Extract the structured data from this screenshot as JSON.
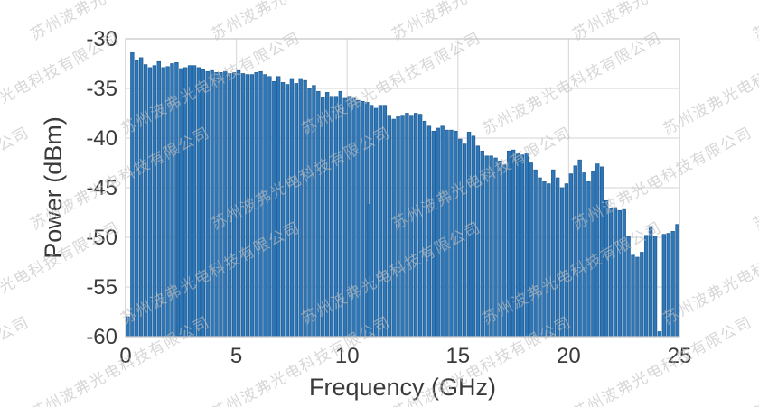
{
  "figure": {
    "background": "#ffffff",
    "watermark": {
      "text": "苏州波弗光电科技有限公司",
      "color": "#d9d9d9",
      "angle_deg": -28
    }
  },
  "chart_data": {
    "type": "bar",
    "title": "",
    "xlabel": "Frequency (GHz)",
    "ylabel": "Power (dBm)",
    "xlim": [
      0,
      25
    ],
    "ylim": [
      -60,
      -30
    ],
    "xticks": [
      0,
      5,
      10,
      15,
      20,
      25
    ],
    "yticks": [
      -30,
      -35,
      -40,
      -45,
      -50,
      -55,
      -60
    ],
    "grid": true,
    "grid_color": "#dcdcdc",
    "spine_color": "#c8c8c8",
    "bar_color": "#2e76b6",
    "bar_edge_color": "#1f5c94",
    "bar_width_ghz": 0.15,
    "comb_spacing_ghz": 0.2,
    "x_unit": "GHz",
    "y_unit": "dBm",
    "points": [
      [
        0.1,
        -58.0
      ],
      [
        0.3,
        -31.4
      ],
      [
        0.5,
        -32.2
      ],
      [
        0.7,
        -31.9
      ],
      [
        0.9,
        -32.6
      ],
      [
        1.1,
        -32.9
      ],
      [
        1.3,
        -32.7
      ],
      [
        1.5,
        -32.3
      ],
      [
        1.7,
        -32.9
      ],
      [
        1.9,
        -32.8
      ],
      [
        2.1,
        -32.5
      ],
      [
        2.3,
        -32.4
      ],
      [
        2.4,
        -41.5
      ],
      [
        2.5,
        -33.0
      ],
      [
        2.7,
        -32.9
      ],
      [
        2.9,
        -32.7
      ],
      [
        3.1,
        -32.7
      ],
      [
        3.3,
        -32.9
      ],
      [
        3.5,
        -33.1
      ],
      [
        3.7,
        -33.3
      ],
      [
        3.9,
        -33.2
      ],
      [
        4.1,
        -33.4
      ],
      [
        4.3,
        -33.4
      ],
      [
        4.5,
        -33.3
      ],
      [
        4.7,
        -33.5
      ],
      [
        4.9,
        -33.4
      ],
      [
        5.1,
        -33.2
      ],
      [
        5.3,
        -33.5
      ],
      [
        5.5,
        -33.6
      ],
      [
        5.7,
        -33.6
      ],
      [
        5.9,
        -33.4
      ],
      [
        6.1,
        -33.3
      ],
      [
        6.3,
        -33.6
      ],
      [
        6.5,
        -33.8
      ],
      [
        6.7,
        -34.3
      ],
      [
        6.9,
        -33.8
      ],
      [
        7.1,
        -34.4
      ],
      [
        7.3,
        -34.6
      ],
      [
        7.5,
        -34.0
      ],
      [
        7.7,
        -34.5
      ],
      [
        7.9,
        -34.0
      ],
      [
        8.1,
        -34.2
      ],
      [
        8.3,
        -35.0
      ],
      [
        8.5,
        -34.7
      ],
      [
        8.7,
        -35.3
      ],
      [
        8.9,
        -35.9
      ],
      [
        9.1,
        -35.4
      ],
      [
        9.3,
        -35.8
      ],
      [
        9.5,
        -35.8
      ],
      [
        9.7,
        -35.3
      ],
      [
        9.9,
        -36.0
      ],
      [
        10.1,
        -35.8
      ],
      [
        10.3,
        -36.0
      ],
      [
        10.5,
        -36.2
      ],
      [
        10.7,
        -36.3
      ],
      [
        10.9,
        -36.4
      ],
      [
        11.0,
        -46.7
      ],
      [
        11.1,
        -36.7
      ],
      [
        11.3,
        -37.0
      ],
      [
        11.5,
        -36.7
      ],
      [
        11.7,
        -36.7
      ],
      [
        11.9,
        -37.7
      ],
      [
        12.1,
        -38.1
      ],
      [
        12.3,
        -37.8
      ],
      [
        12.5,
        -37.7
      ],
      [
        12.7,
        -37.5
      ],
      [
        12.9,
        -37.7
      ],
      [
        13.1,
        -37.5
      ],
      [
        13.3,
        -37.6
      ],
      [
        13.5,
        -38.3
      ],
      [
        13.7,
        -38.8
      ],
      [
        13.9,
        -39.3
      ],
      [
        14.1,
        -39.0
      ],
      [
        14.3,
        -38.8
      ],
      [
        14.5,
        -39.2
      ],
      [
        14.7,
        -39.2
      ],
      [
        14.9,
        -39.3
      ],
      [
        15.1,
        -40.1
      ],
      [
        15.3,
        -40.6
      ],
      [
        15.5,
        -39.4
      ],
      [
        15.6,
        -48.8
      ],
      [
        15.7,
        -39.8
      ],
      [
        15.9,
        -40.8
      ],
      [
        16.1,
        -41.3
      ],
      [
        16.3,
        -41.8
      ],
      [
        16.5,
        -41.8
      ],
      [
        16.7,
        -42.0
      ],
      [
        16.9,
        -42.3
      ],
      [
        17.1,
        -42.7
      ],
      [
        17.3,
        -41.3
      ],
      [
        17.5,
        -41.2
      ],
      [
        17.7,
        -41.5
      ],
      [
        17.9,
        -41.7
      ],
      [
        18.1,
        -41.5
      ],
      [
        18.3,
        -42.5
      ],
      [
        18.5,
        -43.2
      ],
      [
        18.7,
        -44.0
      ],
      [
        18.9,
        -44.4
      ],
      [
        19.1,
        -44.6
      ],
      [
        19.3,
        -43.2
      ],
      [
        19.5,
        -44.0
      ],
      [
        19.7,
        -45.0
      ],
      [
        19.9,
        -44.6
      ],
      [
        20.1,
        -43.6
      ],
      [
        20.3,
        -42.8
      ],
      [
        20.5,
        -42.2
      ],
      [
        20.7,
        -43.5
      ],
      [
        20.9,
        -44.4
      ],
      [
        21.1,
        -43.4
      ],
      [
        21.3,
        -42.6
      ],
      [
        21.5,
        -42.9
      ],
      [
        21.7,
        -46.3
      ],
      [
        21.9,
        -47.1
      ],
      [
        22.1,
        -47.0
      ],
      [
        22.3,
        -47.3
      ],
      [
        22.5,
        -47.2
      ],
      [
        22.7,
        -49.9
      ],
      [
        22.9,
        -51.8
      ],
      [
        23.1,
        -52.0
      ],
      [
        23.3,
        -51.5
      ],
      [
        23.5,
        -49.8
      ],
      [
        23.7,
        -48.9
      ],
      [
        23.9,
        -49.9
      ],
      [
        24.1,
        -59.5
      ],
      [
        24.3,
        -49.7
      ],
      [
        24.5,
        -49.6
      ],
      [
        24.7,
        -49.4
      ],
      [
        24.9,
        -48.7
      ]
    ]
  }
}
